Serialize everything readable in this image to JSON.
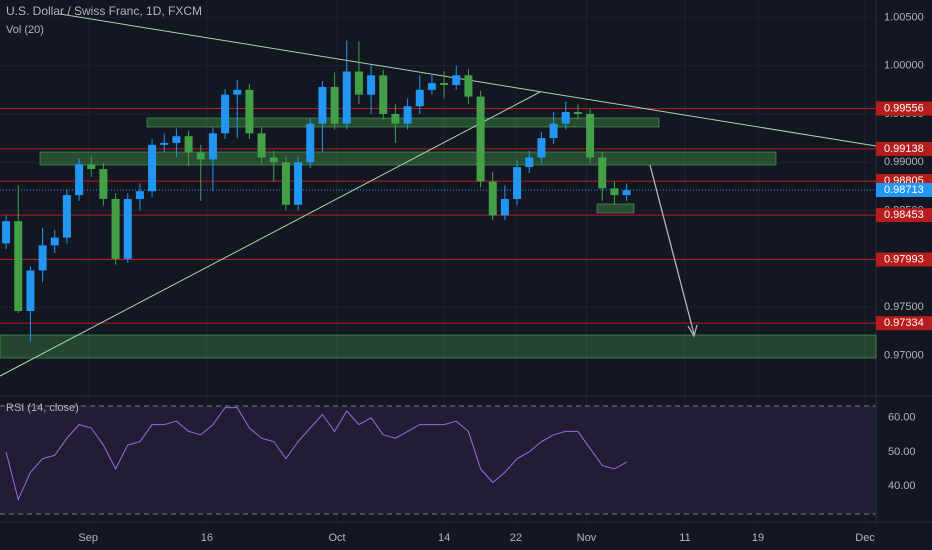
{
  "chart_data": {
    "type": "candlestick",
    "title": "U.S. Dollar / Swiss Franc, 1D, FXCM",
    "volume_label": "Vol (20)",
    "rsi_label": "RSI (14, close)",
    "up_color": "#2196f3",
    "down_color": "#43a047",
    "open": [
      0.9816,
      0.9839,
      0.9746,
      0.9788,
      0.9814,
      0.9822,
      0.9866,
      0.9898,
      0.9893,
      0.9862,
      0.98,
      0.9862,
      0.987,
      0.9918,
      0.992,
      0.9927,
      0.991,
      0.9903,
      0.993,
      0.997,
      0.9975,
      0.993,
      0.9905,
      0.99,
      0.9856,
      0.99,
      0.994,
      0.9978,
      0.994,
      0.9994,
      0.997,
      0.999,
      0.995,
      0.994,
      0.9958,
      0.9975,
      0.9982,
      0.998,
      0.999,
      0.9968,
      0.988,
      0.9845,
      0.9862,
      0.9895,
      0.9905,
      0.9925,
      0.994,
      0.9952,
      0.995,
      0.9905,
      0.9873,
      0.9866
    ],
    "high": [
      0.9845,
      0.9876,
      0.9792,
      0.9832,
      0.983,
      0.9872,
      0.9904,
      0.9906,
      0.9899,
      0.9868,
      0.9868,
      0.9878,
      0.9924,
      0.993,
      0.9935,
      0.9933,
      0.9918,
      0.9936,
      0.9976,
      0.9985,
      0.9981,
      0.9936,
      0.9912,
      0.9906,
      0.9906,
      0.9946,
      0.9984,
      0.9993,
      1.0026,
      1.0025,
      1.0,
      0.9996,
      0.996,
      0.9966,
      0.999,
      0.9992,
      0.9994,
      1.0,
      0.9996,
      0.9974,
      0.989,
      0.9876,
      0.9902,
      0.9912,
      0.9931,
      0.9952,
      0.9963,
      0.996,
      0.9955,
      0.9911,
      0.988,
      0.9878
    ],
    "low": [
      0.981,
      0.9744,
      0.9714,
      0.9776,
      0.9806,
      0.9816,
      0.986,
      0.9885,
      0.9855,
      0.9794,
      0.9796,
      0.985,
      0.9864,
      0.991,
      0.9905,
      0.9896,
      0.986,
      0.987,
      0.9924,
      0.9925,
      0.9924,
      0.9899,
      0.988,
      0.985,
      0.985,
      0.9894,
      0.991,
      0.9934,
      0.9934,
      0.996,
      0.995,
      0.9944,
      0.992,
      0.9934,
      0.995,
      0.997,
      0.9966,
      0.9975,
      0.996,
      0.9874,
      0.984,
      0.984,
      0.9856,
      0.9889,
      0.9899,
      0.9919,
      0.9934,
      0.9944,
      0.9899,
      0.986,
      0.9856,
      0.986
    ],
    "close": [
      0.9839,
      0.9746,
      0.9788,
      0.9814,
      0.9822,
      0.9866,
      0.9898,
      0.9893,
      0.9862,
      0.98,
      0.9862,
      0.987,
      0.9918,
      0.992,
      0.9927,
      0.991,
      0.9903,
      0.993,
      0.997,
      0.9975,
      0.993,
      0.9905,
      0.99,
      0.9856,
      0.99,
      0.994,
      0.9978,
      0.994,
      0.9994,
      0.997,
      0.999,
      0.995,
      0.994,
      0.9958,
      0.9975,
      0.9982,
      0.998,
      0.999,
      0.9968,
      0.988,
      0.9845,
      0.9862,
      0.9895,
      0.9905,
      0.9925,
      0.994,
      0.9952,
      0.995,
      0.9905,
      0.9873,
      0.9866,
      0.9871
    ],
    "rsi": [
      50,
      36,
      44,
      48,
      49,
      54,
      58,
      57,
      52,
      45,
      52,
      53,
      58,
      58,
      59,
      56,
      55,
      58,
      63,
      63,
      57,
      54,
      53,
      48,
      53,
      57,
      61,
      56,
      62,
      58,
      60,
      55,
      54,
      56,
      58,
      58,
      58,
      59,
      56,
      45,
      41,
      44,
      48,
      50,
      53,
      55,
      56,
      56,
      51,
      46,
      45,
      47
    ],
    "rsi_color": "#9c6ade",
    "ylim": [
      0.9658,
      1.0068
    ],
    "yticks": [
      {
        "value": 1.005,
        "label": "1.00500"
      },
      {
        "value": 1.0,
        "label": "1.00000"
      },
      {
        "value": 0.995,
        "label": "0.99500"
      },
      {
        "value": 0.99,
        "label": "0.99000"
      },
      {
        "value": 0.985,
        "label": "0.98500"
      },
      {
        "value": 0.98,
        "label": "0.98000"
      },
      {
        "value": 0.975,
        "label": "0.97500"
      },
      {
        "value": 0.97,
        "label": "0.97000"
      }
    ],
    "rsi_ylim": [
      29.4,
      66.4
    ],
    "rsi_yticks": [
      {
        "value": 60,
        "label": "60.00"
      },
      {
        "value": 50,
        "label": "50.00"
      },
      {
        "value": 40,
        "label": "40.00"
      }
    ],
    "levels": [
      0.99556,
      0.99138,
      0.98805,
      0.98453,
      0.97993,
      0.97334
    ],
    "level_color": "#b71c1c",
    "last_price": 0.98713,
    "last_color": "#2196f3",
    "xlim": [
      -0.5,
      71.5
    ],
    "xticks": [
      {
        "value": 6.75,
        "label": "Sep"
      },
      {
        "value": 16.5,
        "label": "16"
      },
      {
        "value": 27.2,
        "label": "Oct"
      },
      {
        "value": 36,
        "label": "14"
      },
      {
        "value": 41.9,
        "label": "22"
      },
      {
        "value": 47.7,
        "label": "Nov"
      },
      {
        "value": 55.8,
        "label": "11"
      },
      {
        "value": 61.8,
        "label": "19"
      },
      {
        "value": 70.6,
        "label": "Dec"
      }
    ]
  }
}
